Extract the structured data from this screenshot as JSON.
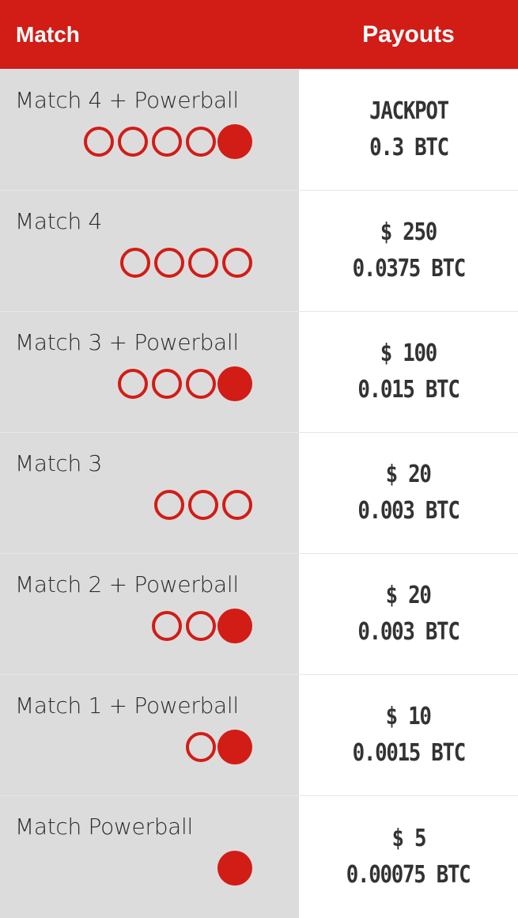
{
  "header": {
    "match_label": "Match",
    "payouts_label": "Payouts"
  },
  "accent_color": "#d21c16",
  "rows": [
    {
      "label": "Match 4 + Powerball",
      "balls": [
        "white",
        "white",
        "white",
        "white",
        "red"
      ],
      "line1": "JACKPOT",
      "line2": "0.3 BTC"
    },
    {
      "label": "Match 4",
      "balls": [
        "white",
        "white",
        "white",
        "white"
      ],
      "line1": "$ 250",
      "line2": "0.0375 BTC"
    },
    {
      "label": "Match 3 + Powerball",
      "balls": [
        "white",
        "white",
        "white",
        "red"
      ],
      "line1": "$ 100",
      "line2": "0.015 BTC"
    },
    {
      "label": "Match 3",
      "balls": [
        "white",
        "white",
        "white"
      ],
      "line1": "$ 20",
      "line2": "0.003 BTC"
    },
    {
      "label": "Match 2 + Powerball",
      "balls": [
        "white",
        "white",
        "red"
      ],
      "line1": "$ 20",
      "line2": "0.003 BTC"
    },
    {
      "label": "Match 1 + Powerball",
      "balls": [
        "white",
        "red"
      ],
      "line1": "$ 10",
      "line2": "0.0015 BTC"
    },
    {
      "label": "Match Powerball",
      "balls": [
        "red"
      ],
      "line1": "$ 5",
      "line2": "0.00075 BTC"
    }
  ]
}
